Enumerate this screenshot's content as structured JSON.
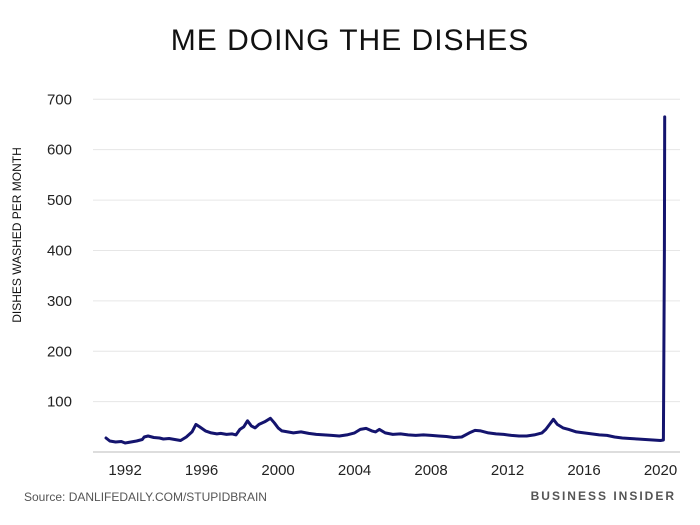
{
  "title": "ME DOING THE DISHES",
  "source_label": "Source:",
  "source_text": "DANLIFEDAILY.COM/STUPIDBRAIN",
  "brand": "BUSINESS INSIDER",
  "colors": {
    "line": "#14146e",
    "grid": "#e6e6e6",
    "text": "#222222"
  },
  "chart_data": {
    "type": "line",
    "title": "ME DOING THE DISHES",
    "ylabel": "DISHES WASHED PER MONTH",
    "xlabel": "",
    "xlim": [
      1991.0,
      2020.6
    ],
    "ylim": [
      0,
      700
    ],
    "yticks": [
      100,
      200,
      300,
      400,
      500,
      600,
      700
    ],
    "xticks": [
      1992,
      1996,
      2000,
      2004,
      2008,
      2012,
      2016,
      2020
    ],
    "grid": true,
    "series": [
      {
        "x": [
          1991.0,
          1991.2,
          1991.5,
          1991.8,
          1992.0,
          1992.3,
          1992.6,
          1992.9,
          1993.0,
          1993.2,
          1993.5,
          1993.8,
          1994.0,
          1994.3,
          1994.6,
          1994.9,
          1995.2,
          1995.5,
          1995.7,
          1995.9,
          1996.2,
          1996.5,
          1996.8,
          1997.0,
          1997.3,
          1997.6,
          1997.8,
          1998.0,
          1998.2,
          1998.4,
          1998.6,
          1998.8,
          1999.0,
          1999.3,
          1999.6,
          1999.8,
          2000.0,
          2000.2,
          2000.5,
          2000.8,
          2001.2,
          2001.6,
          2002.0,
          2002.4,
          2002.8,
          2003.2,
          2003.6,
          2004.0,
          2004.3,
          2004.6,
          2004.9,
          2005.1,
          2005.3,
          2005.6,
          2006.0,
          2006.4,
          2006.8,
          2007.2,
          2007.6,
          2008.0,
          2008.4,
          2008.8,
          2009.2,
          2009.6,
          2010.0,
          2010.3,
          2010.6,
          2011.0,
          2011.4,
          2011.8,
          2012.2,
          2012.6,
          2013.0,
          2013.4,
          2013.8,
          2014.0,
          2014.2,
          2014.4,
          2014.6,
          2014.9,
          2015.2,
          2015.6,
          2016.0,
          2016.4,
          2016.8,
          2017.2,
          2017.6,
          2018.0,
          2018.4,
          2018.8,
          2019.2,
          2019.6,
          2020.0,
          2020.15,
          2020.2,
          2020.22
        ],
        "y": [
          28,
          22,
          20,
          21,
          18,
          20,
          22,
          25,
          30,
          32,
          29,
          28,
          26,
          27,
          25,
          23,
          30,
          40,
          55,
          50,
          42,
          38,
          36,
          37,
          35,
          36,
          34,
          45,
          50,
          62,
          52,
          48,
          55,
          60,
          67,
          58,
          48,
          42,
          40,
          38,
          40,
          37,
          35,
          34,
          33,
          32,
          34,
          38,
          45,
          47,
          42,
          40,
          45,
          38,
          35,
          36,
          34,
          33,
          34,
          33,
          32,
          31,
          29,
          30,
          38,
          43,
          42,
          38,
          36,
          35,
          33,
          32,
          32,
          34,
          38,
          45,
          55,
          65,
          55,
          48,
          45,
          40,
          38,
          36,
          34,
          33,
          30,
          28,
          27,
          26,
          25,
          24,
          23,
          24,
          400,
          665
        ]
      }
    ]
  }
}
